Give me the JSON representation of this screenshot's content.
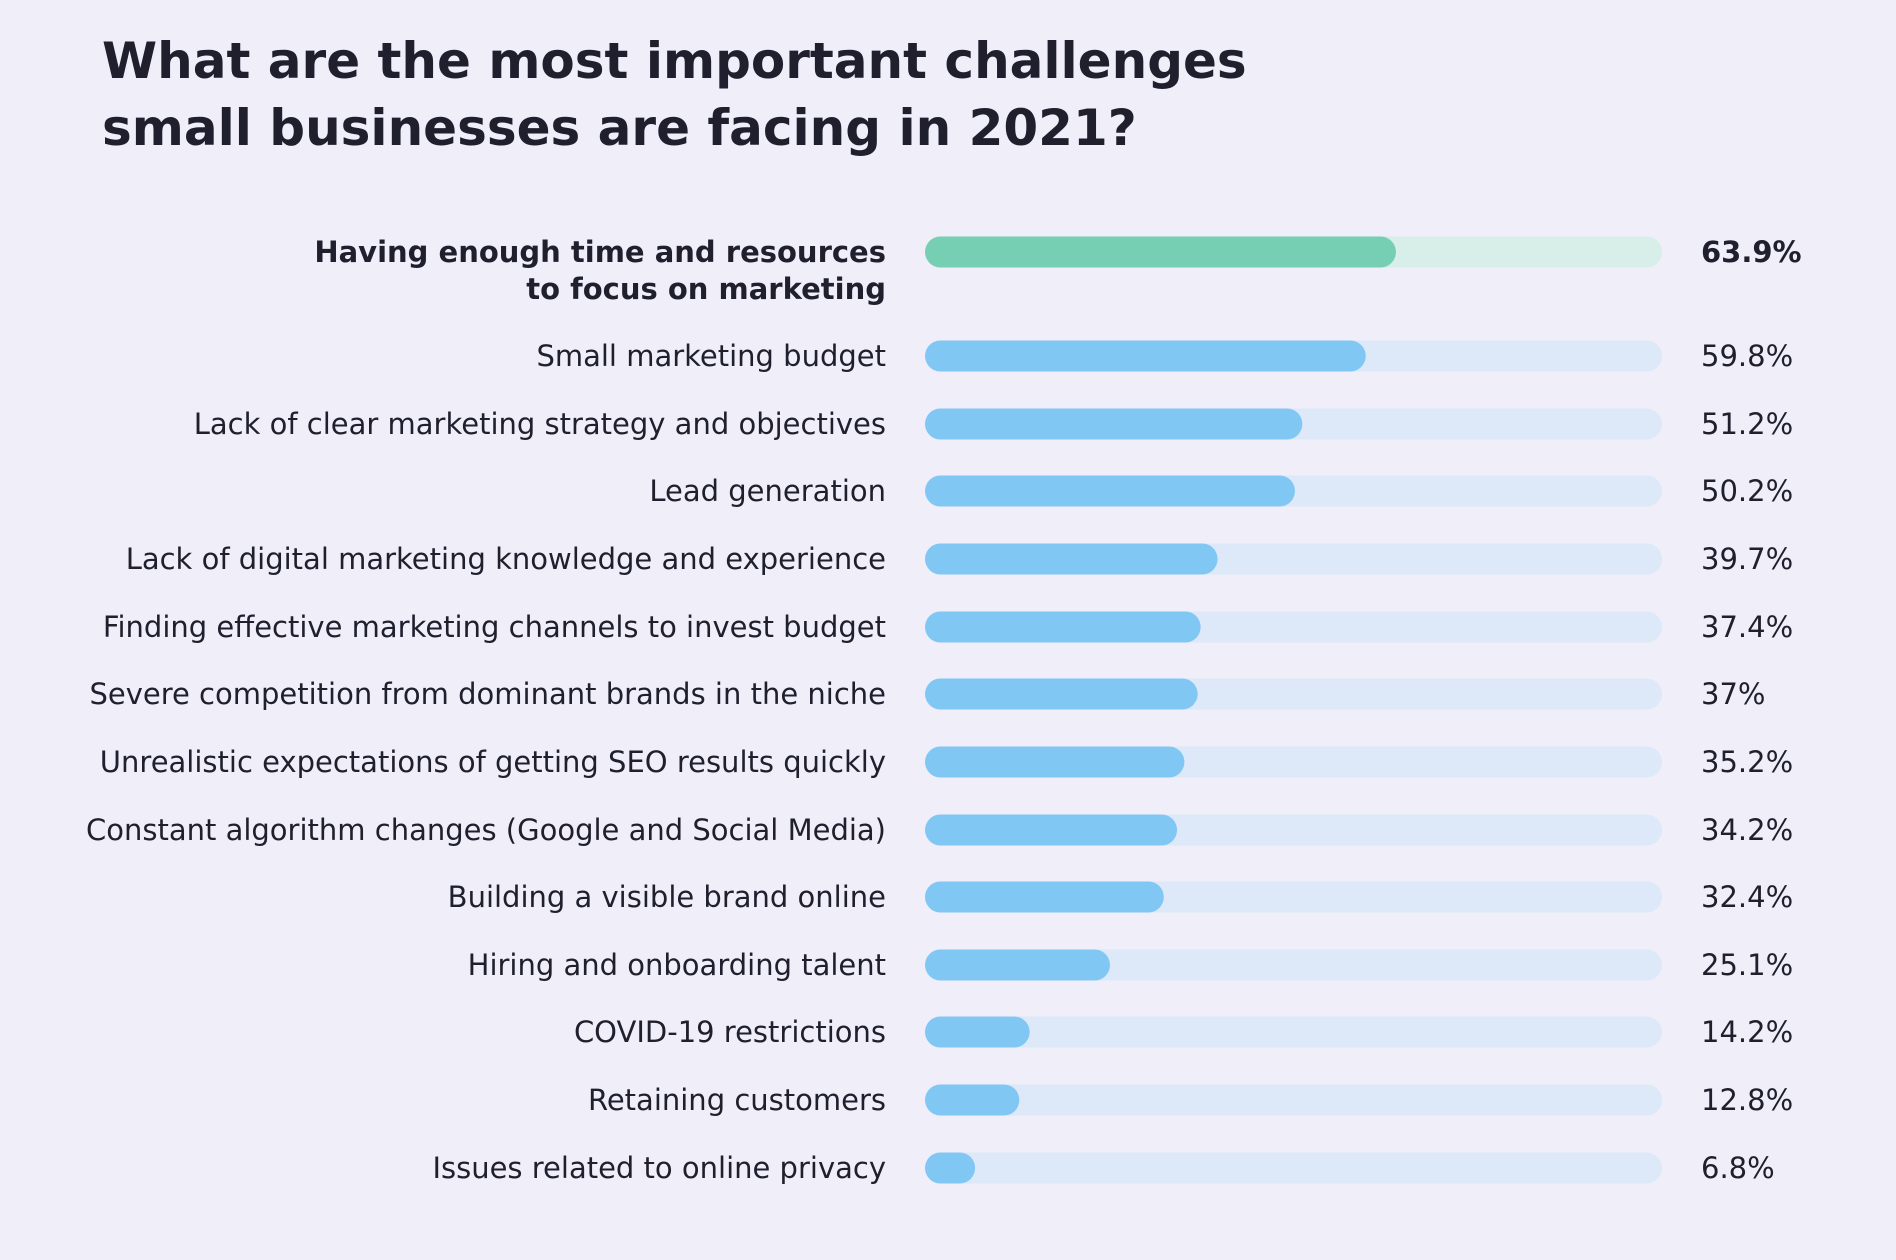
{
  "colors": {
    "background": "#efeef9",
    "bar_primary": "#80c7f4",
    "bar_primary_track": "#dde8f8",
    "bar_highlight": "#76cfb2",
    "bar_highlight_track": "#d8efe9",
    "text": "#1f1f2e"
  },
  "chart_data": {
    "type": "bar",
    "orientation": "horizontal",
    "title_lines": [
      "What are the most important challenges",
      "small businesses are facing in 2021?"
    ],
    "highlight_index": 0,
    "xlim": [
      0,
      100
    ],
    "grid": false,
    "categories": [
      [
        "Having enough time and resources",
        "to focus on marketing"
      ],
      [
        "Small marketing budget"
      ],
      [
        "Lack of clear marketing strategy and objectives"
      ],
      [
        "Lead generation"
      ],
      [
        "Lack of digital marketing knowledge and experience"
      ],
      [
        "Finding effective marketing channels to invest budget"
      ],
      [
        "Severe competition from dominant brands in the niche"
      ],
      [
        "Unrealistic expectations of getting SEO results quickly"
      ],
      [
        "Constant algorithm changes (Google and Social Media)"
      ],
      [
        "Building a visible brand online"
      ],
      [
        "Hiring and onboarding talent"
      ],
      [
        "COVID-19 restrictions"
      ],
      [
        "Retaining customers"
      ],
      [
        "Issues related to online privacy"
      ]
    ],
    "values": [
      63.9,
      59.8,
      51.2,
      50.2,
      39.7,
      37.4,
      37,
      35.2,
      34.2,
      32.4,
      25.1,
      14.2,
      12.8,
      6.8
    ],
    "value_labels": [
      "63.9%",
      "59.8%",
      "51.2%",
      "50.2%",
      "39.7%",
      "37.4%",
      "37%",
      "35.2%",
      "34.2%",
      "32.4%",
      "25.1%",
      "14.2%",
      "12.8%",
      "6.8%"
    ]
  }
}
